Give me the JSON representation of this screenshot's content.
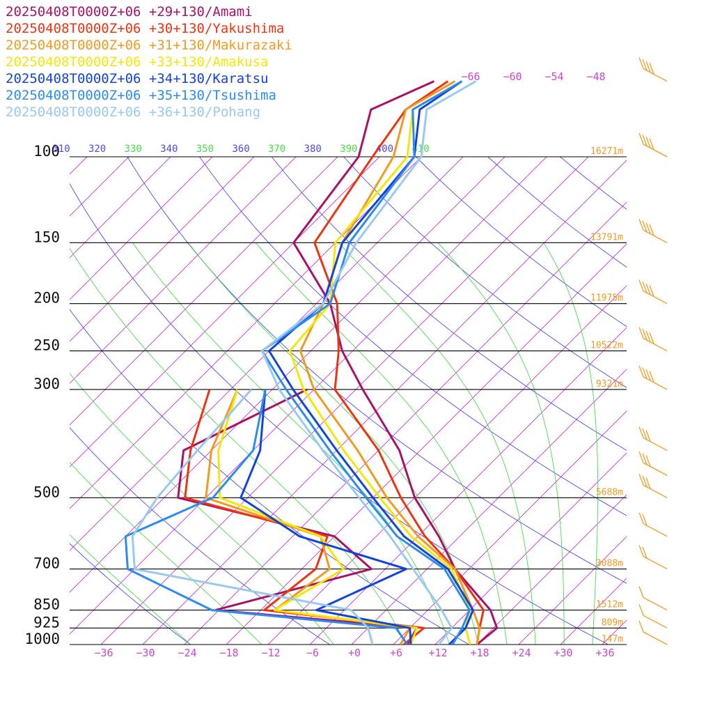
{
  "chart_data": {
    "type": "line",
    "subtype": "skew-T log-P diagram",
    "title": "",
    "xlabel": "",
    "ylabel": "",
    "x_unit": "deg C",
    "y_unit": "hPa",
    "y_scale": "log",
    "ylim": [
      1000,
      100
    ],
    "xlim": [
      -40,
      40
    ],
    "grid": true,
    "legend_position": "top-left",
    "pressure_ticks": [
      100,
      150,
      200,
      250,
      300,
      500,
      700,
      850,
      925,
      1000
    ],
    "temperature_ticks": [
      -36,
      -30,
      -24,
      -18,
      -12,
      -6,
      0,
      6,
      12,
      18,
      24,
      30,
      36
    ],
    "temperature_tick_labels": [
      "−36",
      "−30",
      "−24",
      "−18",
      "−12",
      "−6",
      "+0",
      "+6",
      "+12",
      "+18",
      "+24",
      "+30",
      "+36"
    ],
    "upper_temperature_labels": [
      "−66",
      "−60",
      "−54",
      "−48"
    ],
    "theta_ticks": [
      {
        "label": "310",
        "kind": "dry"
      },
      {
        "label": "320",
        "kind": "dry"
      },
      {
        "label": "330",
        "kind": "moist"
      },
      {
        "label": "340",
        "kind": "dry"
      },
      {
        "label": "350",
        "kind": "moist"
      },
      {
        "label": "360",
        "kind": "dry"
      },
      {
        "label": "370",
        "kind": "moist"
      },
      {
        "label": "380",
        "kind": "dry"
      },
      {
        "label": "390",
        "kind": "moist"
      },
      {
        "label": "400",
        "kind": "dry"
      },
      {
        "label": "410",
        "kind": "moist"
      }
    ],
    "height_labels": [
      {
        "p": 100,
        "label": "16271m"
      },
      {
        "p": 150,
        "label": "13791m"
      },
      {
        "p": 200,
        "label": "11975m"
      },
      {
        "p": 250,
        "label": "10522m"
      },
      {
        "p": 300,
        "label": "9321m"
      },
      {
        "p": 500,
        "label": "5688m"
      },
      {
        "p": 700,
        "label": "3088m"
      },
      {
        "p": 850,
        "label": "1512m"
      },
      {
        "p": 925,
        "label": "809m"
      },
      {
        "p": 1000,
        "label": "147m"
      }
    ],
    "wind_barb_pressures": [
      70,
      100,
      150,
      200,
      250,
      300,
      400,
      450,
      500,
      600,
      700,
      850,
      925,
      1000
    ],
    "series": [
      {
        "name": "20250408T0000Z+06 +29+130/Amami",
        "color": "#aa1166",
        "temperature": [
          [
            70,
            -69
          ],
          [
            80,
            -74
          ],
          [
            100,
            -69
          ],
          [
            150,
            -66
          ],
          [
            200,
            -52
          ],
          [
            250,
            -43.5
          ],
          [
            300,
            -35
          ],
          [
            400,
            -21
          ],
          [
            500,
            -12
          ],
          [
            600,
            -3
          ],
          [
            700,
            4
          ],
          [
            850,
            15
          ],
          [
            925,
            18.5
          ],
          [
            1000,
            18
          ]
        ],
        "dewpoint": [
          [
            300,
            -43
          ],
          [
            400,
            -52
          ],
          [
            500,
            -46
          ],
          [
            600,
            -18
          ],
          [
            700,
            -8
          ],
          [
            850,
            -24.5
          ],
          [
            925,
            7
          ],
          [
            1000,
            8
          ]
        ]
      },
      {
        "name": "20250408T0000Z+06 +30+130/Yakushima",
        "color": "#ee3311",
        "temperature": [
          [
            70,
            -67
          ],
          [
            80,
            -69
          ],
          [
            100,
            -67
          ],
          [
            150,
            -63
          ],
          [
            200,
            -51
          ],
          [
            250,
            -44
          ],
          [
            300,
            -39
          ],
          [
            400,
            -24
          ],
          [
            500,
            -14
          ],
          [
            600,
            -5
          ],
          [
            700,
            4
          ],
          [
            850,
            14
          ],
          [
            925,
            16
          ],
          [
            1000,
            18
          ]
        ],
        "dewpoint": [
          [
            300,
            -57
          ],
          [
            400,
            -51
          ],
          [
            500,
            -45
          ],
          [
            600,
            -19
          ],
          [
            700,
            -16
          ],
          [
            850,
            -17.5
          ],
          [
            925,
            8
          ],
          [
            1000,
            7.5
          ]
        ]
      },
      {
        "name": "20250408T0000Z+06 +31+130/Makurazaki",
        "color": "#f39a1e",
        "temperature": [
          [
            70,
            -66
          ],
          [
            80,
            -69
          ],
          [
            100,
            -64
          ],
          [
            150,
            -59
          ],
          [
            200,
            -53
          ],
          [
            250,
            -49.5
          ],
          [
            300,
            -42
          ],
          [
            400,
            -27
          ],
          [
            500,
            -16
          ],
          [
            600,
            -6
          ],
          [
            700,
            4
          ],
          [
            850,
            12.5
          ],
          [
            925,
            16
          ],
          [
            1000,
            18
          ]
        ],
        "dewpoint": [
          [
            300,
            -53
          ],
          [
            400,
            -48
          ],
          [
            500,
            -42
          ],
          [
            600,
            -20
          ],
          [
            700,
            -14
          ],
          [
            850,
            -16
          ],
          [
            925,
            6
          ],
          [
            1000,
            7
          ]
        ]
      },
      {
        "name": "20250408T0000Z+06 +33+130/Amakusa",
        "color": "#f5e60a",
        "temperature": [
          [
            70,
            -65
          ],
          [
            80,
            -68
          ],
          [
            100,
            -62
          ],
          [
            150,
            -60
          ],
          [
            200,
            -52
          ],
          [
            250,
            -51
          ],
          [
            300,
            -43.5
          ],
          [
            400,
            -29
          ],
          [
            500,
            -17
          ],
          [
            600,
            -7
          ],
          [
            700,
            3.5
          ],
          [
            850,
            12
          ],
          [
            925,
            14
          ],
          [
            1000,
            17
          ]
        ],
        "dewpoint": [
          [
            300,
            -53
          ],
          [
            400,
            -47
          ],
          [
            500,
            -40
          ],
          [
            600,
            -20
          ],
          [
            700,
            -12
          ],
          [
            850,
            -16
          ],
          [
            925,
            7
          ],
          [
            1000,
            8.5
          ]
        ]
      },
      {
        "name": "20250408T0000Z+06 +34+130/Karatsu",
        "color": "#1144dd",
        "temperature": [
          [
            70,
            -65
          ],
          [
            80,
            -67
          ],
          [
            100,
            -61
          ],
          [
            150,
            -59
          ],
          [
            200,
            -53
          ],
          [
            250,
            -54
          ],
          [
            300,
            -45
          ],
          [
            400,
            -30
          ],
          [
            500,
            -18
          ],
          [
            600,
            -8
          ],
          [
            700,
            3
          ],
          [
            850,
            12.5
          ],
          [
            925,
            14
          ],
          [
            1000,
            14
          ]
        ],
        "dewpoint": [
          [
            300,
            -49
          ],
          [
            400,
            -41
          ],
          [
            500,
            -37
          ],
          [
            600,
            -23
          ],
          [
            700,
            -3
          ],
          [
            850,
            -10
          ],
          [
            925,
            6
          ],
          [
            1000,
            8.5
          ]
        ]
      },
      {
        "name": "20250408T0000Z+06 +35+130/Tsushima",
        "color": "#2a8cf0",
        "temperature": [
          [
            70,
            -65
          ],
          [
            80,
            -68
          ],
          [
            100,
            -61
          ],
          [
            150,
            -58
          ],
          [
            200,
            -52
          ],
          [
            250,
            -55
          ],
          [
            300,
            -46
          ],
          [
            400,
            -31
          ],
          [
            500,
            -19
          ],
          [
            600,
            -9
          ],
          [
            700,
            2.5
          ],
          [
            850,
            12
          ],
          [
            925,
            13.5
          ],
          [
            1000,
            14.5
          ]
        ],
        "dewpoint": [
          [
            300,
            -49
          ],
          [
            400,
            -42
          ],
          [
            500,
            -41
          ],
          [
            600,
            -48
          ],
          [
            700,
            -43
          ],
          [
            850,
            -25
          ],
          [
            925,
            4
          ],
          [
            1000,
            8
          ]
        ]
      },
      {
        "name": "20250408T0000Z+06 +36+130/Pohang",
        "color": "#99c8f2",
        "temperature": [
          [
            70,
            -63
          ],
          [
            80,
            -66
          ],
          [
            100,
            -60
          ],
          [
            150,
            -57
          ],
          [
            200,
            -53
          ],
          [
            250,
            -55
          ],
          [
            300,
            -47
          ],
          [
            400,
            -32
          ],
          [
            500,
            -20
          ],
          [
            600,
            -10
          ],
          [
            700,
            -2
          ],
          [
            850,
            8
          ],
          [
            925,
            12
          ],
          [
            1000,
            12.5
          ]
        ],
        "dewpoint": [
          [
            300,
            -51
          ],
          [
            400,
            -50
          ],
          [
            500,
            -49
          ],
          [
            600,
            -47
          ],
          [
            700,
            -42
          ],
          [
            850,
            -5
          ],
          [
            925,
            0
          ],
          [
            1000,
            3
          ]
        ]
      }
    ]
  }
}
